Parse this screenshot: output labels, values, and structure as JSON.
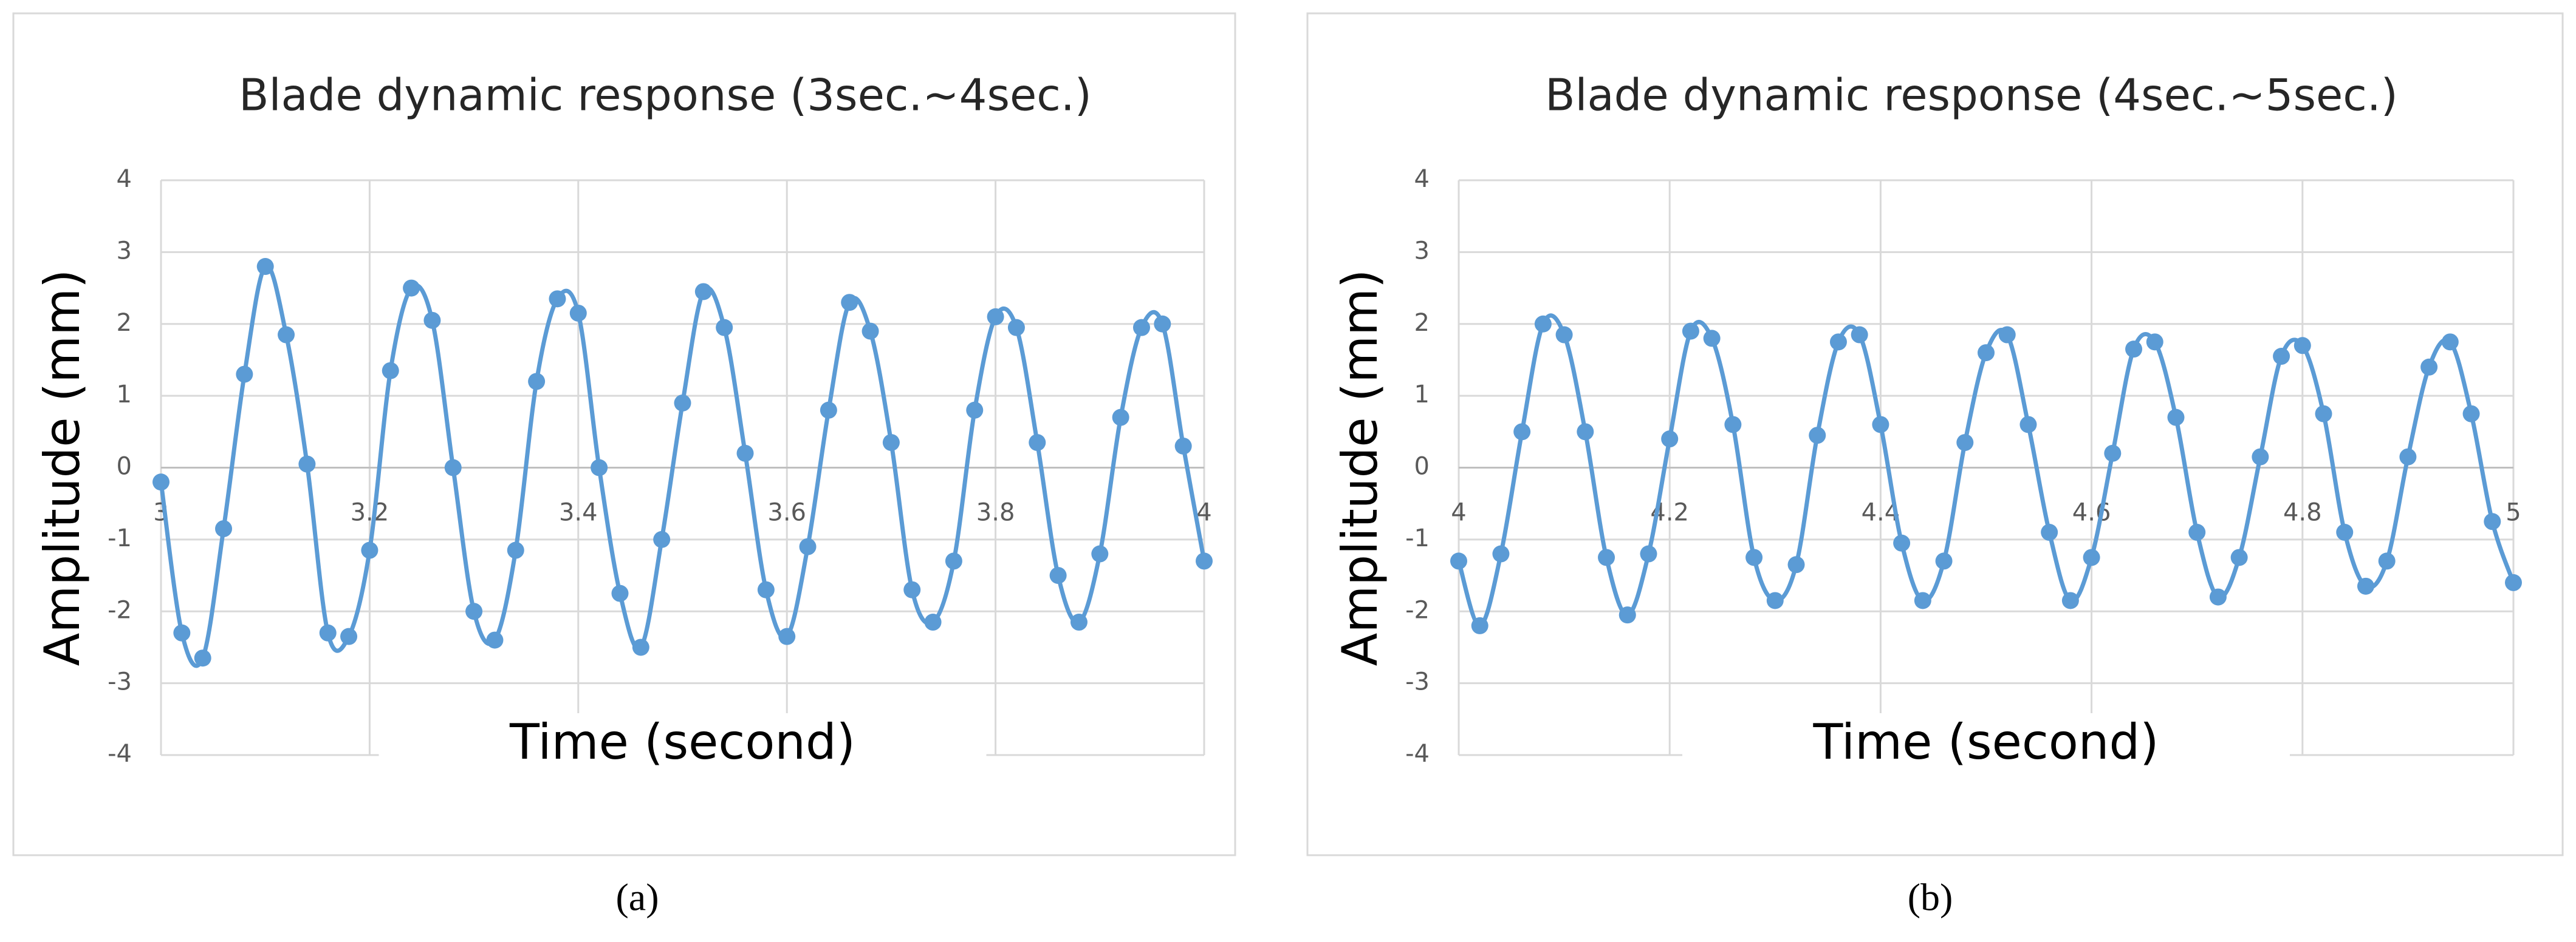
{
  "chart_data": [
    {
      "type": "line",
      "title": "Blade dynamic response (3sec.~4sec.)",
      "xlabel": "Time (second)",
      "ylabel": "Amplitude (mm)",
      "caption": "(a)",
      "x": [
        3,
        3.02,
        3.04,
        3.06,
        3.08,
        3.1,
        3.12,
        3.14,
        3.16,
        3.18,
        3.2,
        3.22,
        3.24,
        3.26,
        3.28,
        3.3,
        3.32,
        3.34,
        3.36,
        3.38,
        3.4,
        3.42,
        3.44,
        3.46,
        3.48,
        3.5,
        3.52,
        3.54,
        3.56,
        3.58,
        3.6,
        3.62,
        3.64,
        3.66,
        3.68,
        3.7,
        3.72,
        3.74,
        3.76,
        3.78,
        3.8,
        3.82,
        3.84,
        3.86,
        3.88,
        3.9,
        3.92,
        3.94,
        3.96,
        3.98,
        4
      ],
      "values": [
        -0.2,
        -2.3,
        -2.65,
        -0.85,
        1.3,
        2.8,
        1.85,
        0.05,
        -2.3,
        -2.35,
        -1.15,
        1.35,
        2.5,
        2.05,
        0,
        -2,
        -2.4,
        -1.15,
        1.2,
        2.35,
        2.15,
        0,
        -1.75,
        -2.5,
        -1,
        0.9,
        2.45,
        1.95,
        0.2,
        -1.7,
        -2.35,
        -1.1,
        0.8,
        2.3,
        1.9,
        0.35,
        -1.7,
        -2.15,
        -1.3,
        0.8,
        2.1,
        1.95,
        0.35,
        -1.5,
        -2.15,
        -1.2,
        0.7,
        1.95,
        2,
        0.3,
        -1.3
      ],
      "color": "#5b9bd5",
      "smooth": true,
      "markers": true,
      "grid": true,
      "xlim": [
        3,
        4
      ],
      "xticks": [
        3,
        3.2,
        3.4,
        3.6,
        3.8,
        4
      ],
      "ylim": [
        -4,
        4
      ],
      "yticks": [
        -4,
        -3,
        -2,
        -1,
        0,
        1,
        2,
        3,
        4
      ]
    },
    {
      "type": "line",
      "title": "Blade dynamic response (4sec.~5sec.)",
      "xlabel": "Time (second)",
      "ylabel": "Amplitude (mm)",
      "caption": "(b)",
      "x": [
        4,
        4.02,
        4.04,
        4.06,
        4.08,
        4.1,
        4.12,
        4.14,
        4.16,
        4.18,
        4.2,
        4.22,
        4.24,
        4.26,
        4.28,
        4.3,
        4.32,
        4.34,
        4.36,
        4.38,
        4.4,
        4.42,
        4.44,
        4.46,
        4.48,
        4.5,
        4.52,
        4.54,
        4.56,
        4.58,
        4.6,
        4.62,
        4.64,
        4.66,
        4.68,
        4.7,
        4.72,
        4.74,
        4.76,
        4.78,
        4.8,
        4.82,
        4.84,
        4.86,
        4.88,
        4.9,
        4.92,
        4.94,
        4.96,
        4.98,
        5
      ],
      "values": [
        -1.3,
        -2.2,
        -1.2,
        0.5,
        2,
        1.85,
        0.5,
        -1.25,
        -2.05,
        -1.2,
        0.4,
        1.9,
        1.8,
        0.6,
        -1.25,
        -1.85,
        -1.35,
        0.45,
        1.75,
        1.85,
        0.6,
        -1.05,
        -1.85,
        -1.3,
        0.35,
        1.6,
        1.85,
        0.6,
        -0.9,
        -1.85,
        -1.25,
        0.2,
        1.65,
        1.75,
        0.7,
        -0.9,
        -1.8,
        -1.25,
        0.15,
        1.55,
        1.7,
        0.75,
        -0.9,
        -1.65,
        -1.3,
        0.15,
        1.4,
        1.75,
        0.75,
        -0.75,
        -1.6
      ],
      "color": "#5b9bd5",
      "smooth": true,
      "markers": true,
      "grid": true,
      "xlim": [
        4,
        5
      ],
      "xticks": [
        4,
        4.2,
        4.4,
        4.6,
        4.8,
        5
      ],
      "ylim": [
        -4,
        4
      ],
      "yticks": [
        -4,
        -3,
        -2,
        -1,
        0,
        1,
        2,
        3,
        4
      ]
    }
  ]
}
